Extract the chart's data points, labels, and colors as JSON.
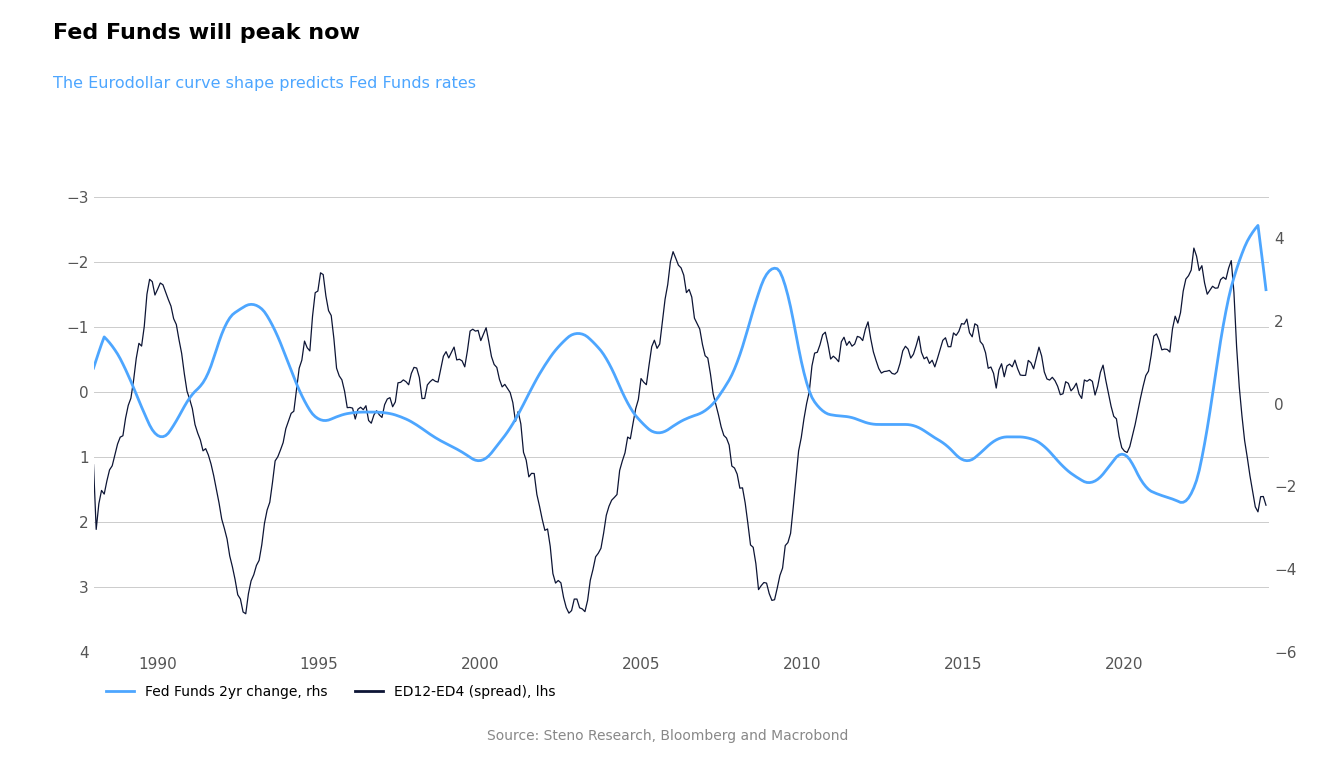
{
  "title": "Fed Funds will peak now",
  "subtitle": "The Eurodollar curve shape predicts Fed Funds rates",
  "subtitle_color": "#4da6ff",
  "title_color": "#000000",
  "source_text": "Source: Steno Research, Bloomberg and Macrobond",
  "background_color": "#ffffff",
  "grid_color": "#cccccc",
  "line_blue_color": "#4da6ff",
  "line_dark_color": "#0d1535",
  "line_blue_label": "Fed Funds 2yr change, rhs",
  "line_dark_label": "ED12-ED4 (spread), lhs",
  "lhs_ylim": [
    4,
    -3
  ],
  "lhs_yticks": [
    4,
    3,
    2,
    1,
    0,
    -1,
    -2,
    -3
  ],
  "rhs_ylim": [
    -6,
    5
  ],
  "rhs_yticks": [
    -6,
    -4,
    -2,
    0,
    2,
    4
  ],
  "xlim": [
    1988.0,
    2024.5
  ],
  "xticks": [
    1990,
    1995,
    2000,
    2005,
    2010,
    2015,
    2020
  ]
}
